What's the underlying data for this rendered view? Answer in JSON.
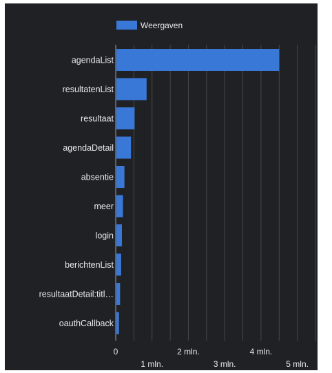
{
  "theme": {
    "background": "#202124",
    "bar_color": "#3a78d8",
    "grid_color": "#46484c",
    "text_color": "#e8eaed"
  },
  "chart_data": {
    "type": "bar",
    "orientation": "horizontal",
    "title": "",
    "xlabel": "",
    "ylabel": "",
    "legend_position": "top",
    "grid": true,
    "categories": [
      "agendaList",
      "resultatenList",
      "resultaat",
      "agendaDetail",
      "absentie",
      "meer",
      "login",
      "berichtenList",
      "resultaatDetail:titl…",
      "oauthCallback"
    ],
    "series": [
      {
        "name": "Weergaven",
        "values": [
          4500000,
          850000,
          520000,
          420000,
          240000,
          200000,
          170000,
          150000,
          120000,
          90000
        ]
      }
    ],
    "xlim": [
      0,
      5500000
    ],
    "x_ticks": [
      {
        "value": 0,
        "label": "0",
        "row": 0
      },
      {
        "value": 1000000,
        "label": "1 mln.",
        "row": 1
      },
      {
        "value": 2000000,
        "label": "2 mln.",
        "row": 0
      },
      {
        "value": 3000000,
        "label": "3 mln.",
        "row": 1
      },
      {
        "value": 4000000,
        "label": "4 mln.",
        "row": 0
      },
      {
        "value": 5000000,
        "label": "5 mln.",
        "row": 1
      }
    ]
  }
}
